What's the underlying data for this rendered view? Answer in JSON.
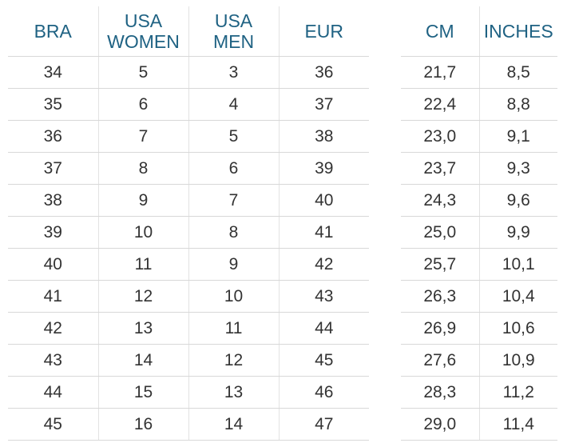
{
  "tables": [
    {
      "headers": [
        "BRA",
        "USA WOMEN",
        "USA MEN",
        "EUR"
      ],
      "rows": [
        [
          34,
          5,
          3,
          36
        ],
        [
          35,
          6,
          4,
          37
        ],
        [
          36,
          7,
          5,
          38
        ],
        [
          37,
          8,
          6,
          39
        ],
        [
          38,
          9,
          7,
          40
        ],
        [
          39,
          10,
          8,
          41
        ],
        [
          40,
          11,
          9,
          42
        ],
        [
          41,
          12,
          10,
          43
        ],
        [
          42,
          13,
          11,
          44
        ],
        [
          43,
          14,
          12,
          45
        ],
        [
          44,
          15,
          13,
          46
        ],
        [
          45,
          16,
          14,
          47
        ]
      ]
    },
    {
      "headers": [
        "CM",
        "INCHES"
      ],
      "rows": [
        [
          "21,7",
          "8,5"
        ],
        [
          "22,4",
          "8,8"
        ],
        [
          "23,0",
          "9,1"
        ],
        [
          "23,7",
          "9,3"
        ],
        [
          "24,3",
          "9,6"
        ],
        [
          "25,0",
          "9,9"
        ],
        [
          "25,7",
          "10,1"
        ],
        [
          "26,3",
          "10,4"
        ],
        [
          "26,9",
          "10,6"
        ],
        [
          "27,6",
          "10,9"
        ],
        [
          "28,3",
          "11,2"
        ],
        [
          "29,0",
          "11,4"
        ]
      ]
    }
  ]
}
